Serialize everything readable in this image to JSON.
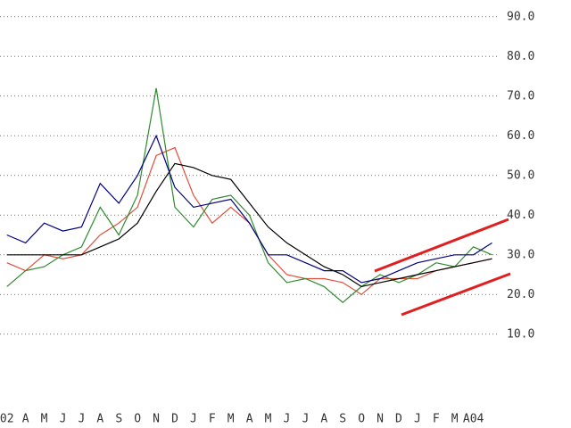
{
  "chart_data": {
    "type": "line",
    "x": [
      0,
      1,
      2,
      3,
      4,
      5,
      6,
      7,
      8,
      9,
      10,
      11,
      12,
      13,
      14,
      15,
      16,
      17,
      18,
      19,
      20,
      21,
      22,
      23,
      24,
      25,
      26
    ],
    "series": [
      {
        "color": "#e0503c",
        "values": [
          28,
          26,
          30,
          29,
          30,
          35,
          38,
          42,
          55,
          57,
          45,
          38,
          42,
          38,
          30,
          25,
          24,
          24,
          23,
          20,
          24,
          24,
          24,
          26,
          27,
          28,
          29
        ]
      },
      {
        "color": "#2e8b2e",
        "values": [
          22,
          26,
          27,
          30,
          32,
          42,
          35,
          45,
          72,
          42,
          37,
          44,
          45,
          40,
          28,
          23,
          24,
          22,
          18,
          22,
          25,
          23,
          25,
          28,
          27,
          32,
          30
        ]
      },
      {
        "color": "#000000",
        "values": [
          30,
          30,
          30,
          30,
          30,
          32,
          34,
          38,
          46,
          53,
          52,
          50,
          49,
          43,
          37,
          33,
          30,
          27,
          25,
          22,
          23,
          24,
          25,
          26,
          27,
          28,
          29
        ]
      },
      {
        "color": "#000080",
        "values": [
          35,
          33,
          38,
          36,
          37,
          48,
          43,
          50,
          60,
          47,
          42,
          43,
          44,
          38,
          30,
          30,
          28,
          26,
          26,
          23,
          24,
          26,
          28,
          29,
          30,
          30,
          33
        ]
      }
    ],
    "xlim": [
      -0.37,
      26.5
    ],
    "xticks": [
      {
        "value": 0,
        "label": "02"
      },
      {
        "value": 1,
        "label": "A"
      },
      {
        "value": 2,
        "label": "M"
      },
      {
        "value": 3,
        "label": "J"
      },
      {
        "value": 4,
        "label": "J"
      },
      {
        "value": 5,
        "label": "A"
      },
      {
        "value": 6,
        "label": "S"
      },
      {
        "value": 7,
        "label": "O"
      },
      {
        "value": 8,
        "label": "N"
      },
      {
        "value": 9,
        "label": "D"
      },
      {
        "value": 10,
        "label": "J"
      },
      {
        "value": 11,
        "label": "F"
      },
      {
        "value": 12,
        "label": "M"
      },
      {
        "value": 13,
        "label": "A"
      },
      {
        "value": 14,
        "label": "M"
      },
      {
        "value": 15,
        "label": "J"
      },
      {
        "value": 16,
        "label": "J"
      },
      {
        "value": 17,
        "label": "A"
      },
      {
        "value": 18,
        "label": "S"
      },
      {
        "value": 19,
        "label": "O"
      },
      {
        "value": 20,
        "label": "N"
      },
      {
        "value": 21,
        "label": "D"
      },
      {
        "value": 22,
        "label": "J"
      },
      {
        "value": 23,
        "label": "F"
      },
      {
        "value": 24,
        "label": "M"
      },
      {
        "value": 25,
        "label": "A04"
      }
    ],
    "ylim": [
      5,
      94
    ],
    "yticks": [
      {
        "value": 10,
        "label": "10.0"
      },
      {
        "value": 20,
        "label": "20.0"
      },
      {
        "value": 30,
        "label": "30.0"
      },
      {
        "value": 40,
        "label": "40.0"
      },
      {
        "value": 50,
        "label": "50.0"
      },
      {
        "value": 60,
        "label": "60.0"
      },
      {
        "value": 70,
        "label": "70.0"
      },
      {
        "value": 80,
        "label": "80.0"
      },
      {
        "value": 90,
        "label": "90.0"
      }
    ],
    "grid": true
  }
}
